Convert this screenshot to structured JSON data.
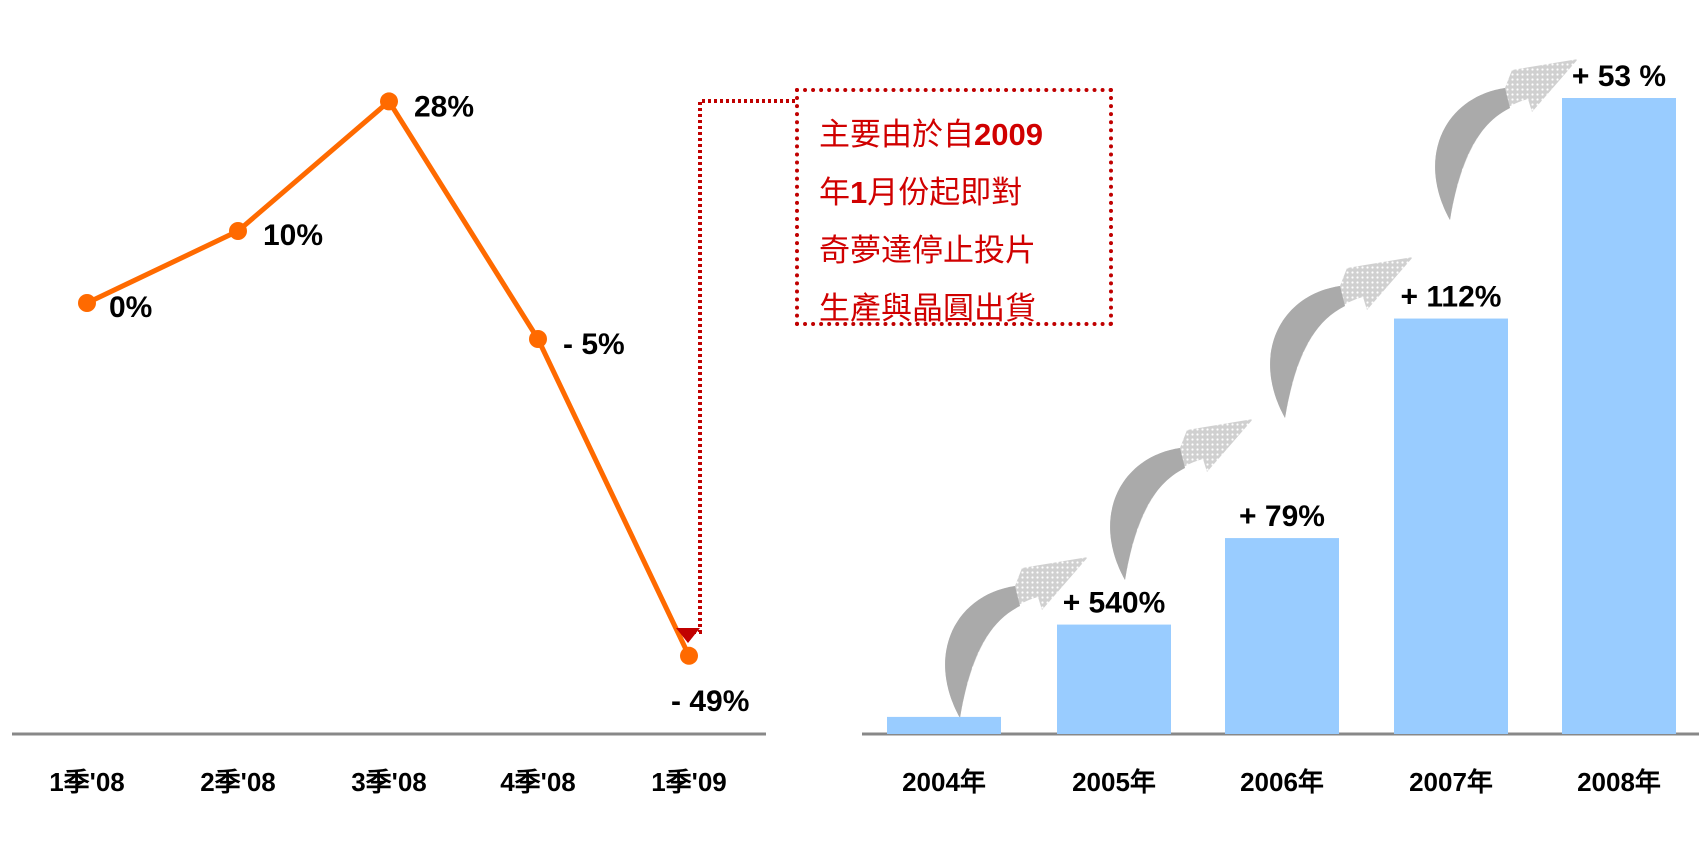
{
  "colors": {
    "line": "#ff6a00",
    "bar": "#99ccff",
    "axis": "#888888",
    "callout": "#c00000",
    "arrow": "#aaaaaa"
  },
  "chart_data": [
    {
      "type": "line",
      "categories": [
        "1季'08",
        "2季'08",
        "3季'08",
        "4季'08",
        "1季'09"
      ],
      "series": [
        {
          "values": [
            0,
            10,
            28,
            -5,
            -49
          ]
        }
      ],
      "data_labels": [
        "0%",
        "10%",
        "28%",
        "- 5%",
        "- 49%"
      ],
      "annotation": {
        "lines": [
          "主要由於自2009",
          "年1月份起即對",
          "奇夢達停止投片",
          "生產與晶圓出貨"
        ],
        "points_to": "1季'09"
      }
    },
    {
      "type": "bar",
      "categories": [
        "2004年",
        "2005年",
        "2006年",
        "2007年",
        "2008年"
      ],
      "series": [
        {
          "values": [
            1,
            6.4,
            11.46,
            24.3,
            37.2
          ]
        }
      ],
      "data_labels": [
        "",
        "+ 540%",
        "+ 79%",
        "+ 112%",
        "+ 53 %"
      ]
    }
  ]
}
